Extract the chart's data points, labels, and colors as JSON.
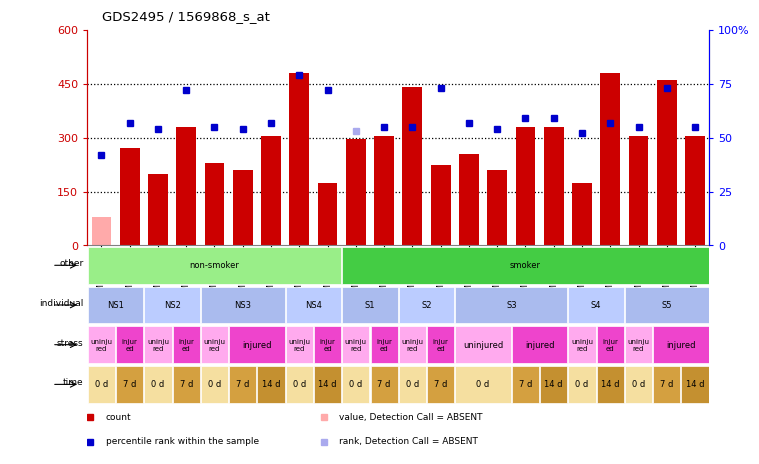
{
  "title": "GDS2495 / 1569868_s_at",
  "samples": [
    "GSM122528",
    "GSM122531",
    "GSM122539",
    "GSM122540",
    "GSM122541",
    "GSM122542",
    "GSM122543",
    "GSM122544",
    "GSM122546",
    "GSM122527",
    "GSM122529",
    "GSM122530",
    "GSM122532",
    "GSM122533",
    "GSM122535",
    "GSM122536",
    "GSM122538",
    "GSM122534",
    "GSM122537",
    "GSM122545",
    "GSM122547",
    "GSM122548"
  ],
  "count_values": [
    80,
    270,
    200,
    330,
    230,
    210,
    305,
    480,
    175,
    295,
    305,
    440,
    225,
    255,
    210,
    330,
    330,
    175,
    480,
    305,
    460,
    305
  ],
  "rank_values": [
    42,
    57,
    54,
    72,
    55,
    54,
    57,
    79,
    72,
    53,
    55,
    55,
    73,
    57,
    54,
    59,
    59,
    52,
    57,
    55,
    73,
    55
  ],
  "absent_flags": [
    true,
    false,
    false,
    false,
    false,
    false,
    false,
    false,
    false,
    false,
    false,
    false,
    false,
    false,
    false,
    false,
    false,
    false,
    false,
    false,
    false,
    false
  ],
  "absent_rank_flags": [
    false,
    false,
    false,
    false,
    false,
    false,
    false,
    false,
    false,
    true,
    false,
    false,
    false,
    false,
    false,
    false,
    false,
    false,
    false,
    false,
    false,
    false
  ],
  "bar_color_present": "#cc0000",
  "bar_color_absent": "#ffaaaa",
  "rank_color_present": "#0000cc",
  "rank_color_absent": "#aaaaee",
  "left_ylim": [
    0,
    600
  ],
  "right_ylim": [
    0,
    100
  ],
  "left_yticks": [
    0,
    150,
    300,
    450,
    600
  ],
  "left_yticklabels": [
    "0",
    "150",
    "300",
    "450",
    "600"
  ],
  "right_yticks": [
    0,
    25,
    50,
    75,
    100
  ],
  "right_yticklabels": [
    "0",
    "25",
    "50",
    "75",
    "100%"
  ],
  "hline_values": [
    150,
    300,
    450
  ],
  "other_row": {
    "label": "other",
    "groups": [
      {
        "text": "non-smoker",
        "start": 0,
        "end": 9,
        "color": "#99ee88"
      },
      {
        "text": "smoker",
        "start": 9,
        "end": 22,
        "color": "#44cc44"
      }
    ]
  },
  "individual_row": {
    "label": "individual",
    "groups": [
      {
        "text": "NS1",
        "start": 0,
        "end": 2,
        "color": "#aabbee"
      },
      {
        "text": "NS2",
        "start": 2,
        "end": 4,
        "color": "#bbccff"
      },
      {
        "text": "NS3",
        "start": 4,
        "end": 7,
        "color": "#aabbee"
      },
      {
        "text": "NS4",
        "start": 7,
        "end": 9,
        "color": "#bbccff"
      },
      {
        "text": "S1",
        "start": 9,
        "end": 11,
        "color": "#aabbee"
      },
      {
        "text": "S2",
        "start": 11,
        "end": 13,
        "color": "#bbccff"
      },
      {
        "text": "S3",
        "start": 13,
        "end": 17,
        "color": "#aabbee"
      },
      {
        "text": "S4",
        "start": 17,
        "end": 19,
        "color": "#bbccff"
      },
      {
        "text": "S5",
        "start": 19,
        "end": 22,
        "color": "#aabbee"
      }
    ]
  },
  "stress_row": {
    "label": "stress",
    "groups": [
      {
        "text": "uninju\nred",
        "start": 0,
        "end": 1,
        "color": "#ffaaee"
      },
      {
        "text": "injur\ned",
        "start": 1,
        "end": 2,
        "color": "#ee44cc"
      },
      {
        "text": "uninju\nred",
        "start": 2,
        "end": 3,
        "color": "#ffaaee"
      },
      {
        "text": "injur\ned",
        "start": 3,
        "end": 4,
        "color": "#ee44cc"
      },
      {
        "text": "uninju\nred",
        "start": 4,
        "end": 5,
        "color": "#ffaaee"
      },
      {
        "text": "injured",
        "start": 5,
        "end": 7,
        "color": "#ee44cc"
      },
      {
        "text": "uninju\nred",
        "start": 7,
        "end": 8,
        "color": "#ffaaee"
      },
      {
        "text": "injur\ned",
        "start": 8,
        "end": 9,
        "color": "#ee44cc"
      },
      {
        "text": "uninju\nred",
        "start": 9,
        "end": 10,
        "color": "#ffaaee"
      },
      {
        "text": "injur\ned",
        "start": 10,
        "end": 11,
        "color": "#ee44cc"
      },
      {
        "text": "uninju\nred",
        "start": 11,
        "end": 12,
        "color": "#ffaaee"
      },
      {
        "text": "injur\ned",
        "start": 12,
        "end": 13,
        "color": "#ee44cc"
      },
      {
        "text": "uninjured",
        "start": 13,
        "end": 15,
        "color": "#ffaaee"
      },
      {
        "text": "injured",
        "start": 15,
        "end": 17,
        "color": "#ee44cc"
      },
      {
        "text": "uninju\nred",
        "start": 17,
        "end": 18,
        "color": "#ffaaee"
      },
      {
        "text": "injur\ned",
        "start": 18,
        "end": 19,
        "color": "#ee44cc"
      },
      {
        "text": "uninju\nred",
        "start": 19,
        "end": 20,
        "color": "#ffaaee"
      },
      {
        "text": "injured",
        "start": 20,
        "end": 22,
        "color": "#ee44cc"
      }
    ]
  },
  "time_row": {
    "label": "time",
    "groups": [
      {
        "text": "0 d",
        "start": 0,
        "end": 1,
        "color": "#f5dfa0"
      },
      {
        "text": "7 d",
        "start": 1,
        "end": 2,
        "color": "#d4a040"
      },
      {
        "text": "0 d",
        "start": 2,
        "end": 3,
        "color": "#f5dfa0"
      },
      {
        "text": "7 d",
        "start": 3,
        "end": 4,
        "color": "#d4a040"
      },
      {
        "text": "0 d",
        "start": 4,
        "end": 5,
        "color": "#f5dfa0"
      },
      {
        "text": "7 d",
        "start": 5,
        "end": 6,
        "color": "#d4a040"
      },
      {
        "text": "14 d",
        "start": 6,
        "end": 7,
        "color": "#c49030"
      },
      {
        "text": "0 d",
        "start": 7,
        "end": 8,
        "color": "#f5dfa0"
      },
      {
        "text": "14 d",
        "start": 8,
        "end": 9,
        "color": "#c49030"
      },
      {
        "text": "0 d",
        "start": 9,
        "end": 10,
        "color": "#f5dfa0"
      },
      {
        "text": "7 d",
        "start": 10,
        "end": 11,
        "color": "#d4a040"
      },
      {
        "text": "0 d",
        "start": 11,
        "end": 12,
        "color": "#f5dfa0"
      },
      {
        "text": "7 d",
        "start": 12,
        "end": 13,
        "color": "#d4a040"
      },
      {
        "text": "0 d",
        "start": 13,
        "end": 15,
        "color": "#f5dfa0"
      },
      {
        "text": "7 d",
        "start": 15,
        "end": 16,
        "color": "#d4a040"
      },
      {
        "text": "14 d",
        "start": 16,
        "end": 17,
        "color": "#c49030"
      },
      {
        "text": "0 d",
        "start": 17,
        "end": 18,
        "color": "#f5dfa0"
      },
      {
        "text": "14 d",
        "start": 18,
        "end": 19,
        "color": "#c49030"
      },
      {
        "text": "0 d",
        "start": 19,
        "end": 20,
        "color": "#f5dfa0"
      },
      {
        "text": "7 d",
        "start": 20,
        "end": 21,
        "color": "#d4a040"
      },
      {
        "text": "14 d",
        "start": 21,
        "end": 22,
        "color": "#c49030"
      }
    ]
  },
  "legend_items": [
    {
      "label": "count",
      "color": "#cc0000"
    },
    {
      "label": "percentile rank within the sample",
      "color": "#0000cc"
    },
    {
      "label": "value, Detection Call = ABSENT",
      "color": "#ffaaaa"
    },
    {
      "label": "rank, Detection Call = ABSENT",
      "color": "#aaaaee"
    }
  ]
}
